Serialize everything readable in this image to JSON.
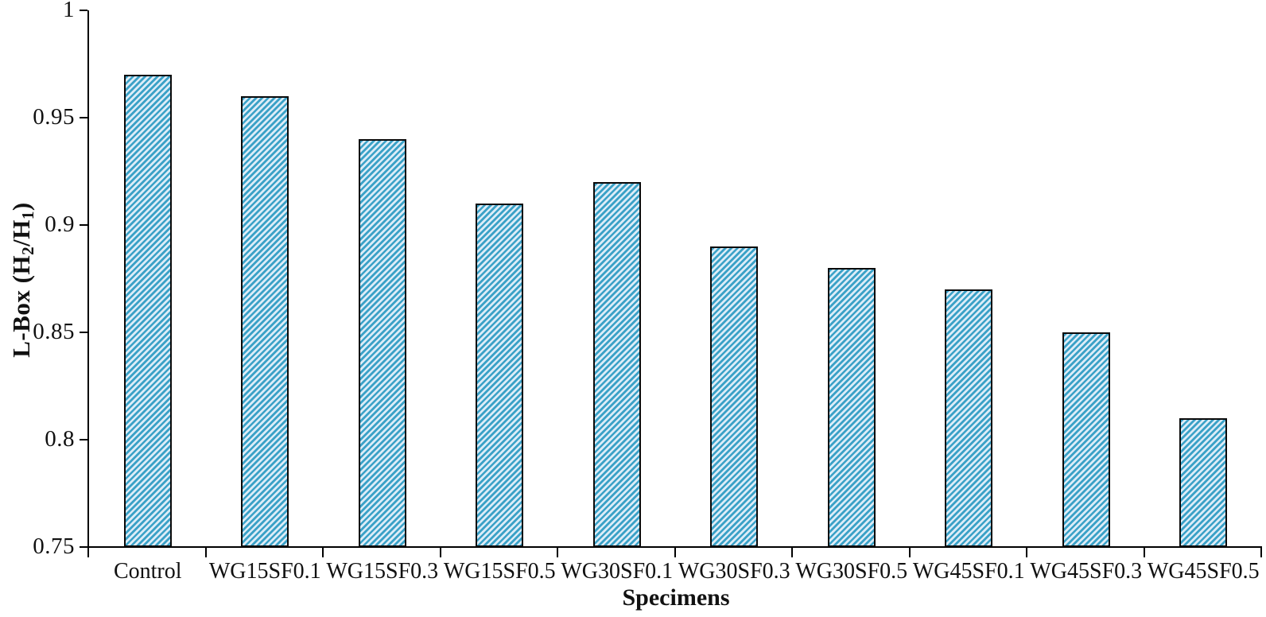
{
  "chart_data": {
    "type": "bar",
    "title": "",
    "categories": [
      "Control",
      "WG15SF0.1",
      "WG15SF0.3",
      "WG15SF0.5",
      "WG30SF0.1",
      "WG30SF0.3",
      "WG30SF0.5",
      "WG45SF0.1",
      "WG45SF0.3",
      "WG45SF0.5"
    ],
    "values": [
      0.97,
      0.96,
      0.94,
      0.91,
      0.92,
      0.89,
      0.88,
      0.87,
      0.85,
      0.81
    ],
    "xlabel": "Specimens",
    "ylabel": "L-Box (H2/H1)",
    "ylabel_parts": [
      {
        "text": "L-Box (H"
      },
      {
        "text": "2",
        "sub": true
      },
      {
        "text": "/H"
      },
      {
        "text": "1",
        "sub": true
      },
      {
        "text": ")"
      }
    ],
    "ylim": [
      0.75,
      1.0
    ],
    "yticks": [
      {
        "value": 1.0,
        "label": "1"
      },
      {
        "value": 0.95,
        "label": "0.95"
      },
      {
        "value": 0.9,
        "label": "0.9"
      },
      {
        "value": 0.85,
        "label": "0.85"
      },
      {
        "value": 0.8,
        "label": "0.8"
      },
      {
        "value": 0.75,
        "label": "0.75"
      }
    ],
    "grid": false,
    "legend": "none",
    "colors": {
      "bar_background": "#dcecf7",
      "hatch_stripe": "#3aa1c7",
      "bar_border": "#0a0a0a",
      "axis": "#000000",
      "text": "#111111"
    }
  }
}
